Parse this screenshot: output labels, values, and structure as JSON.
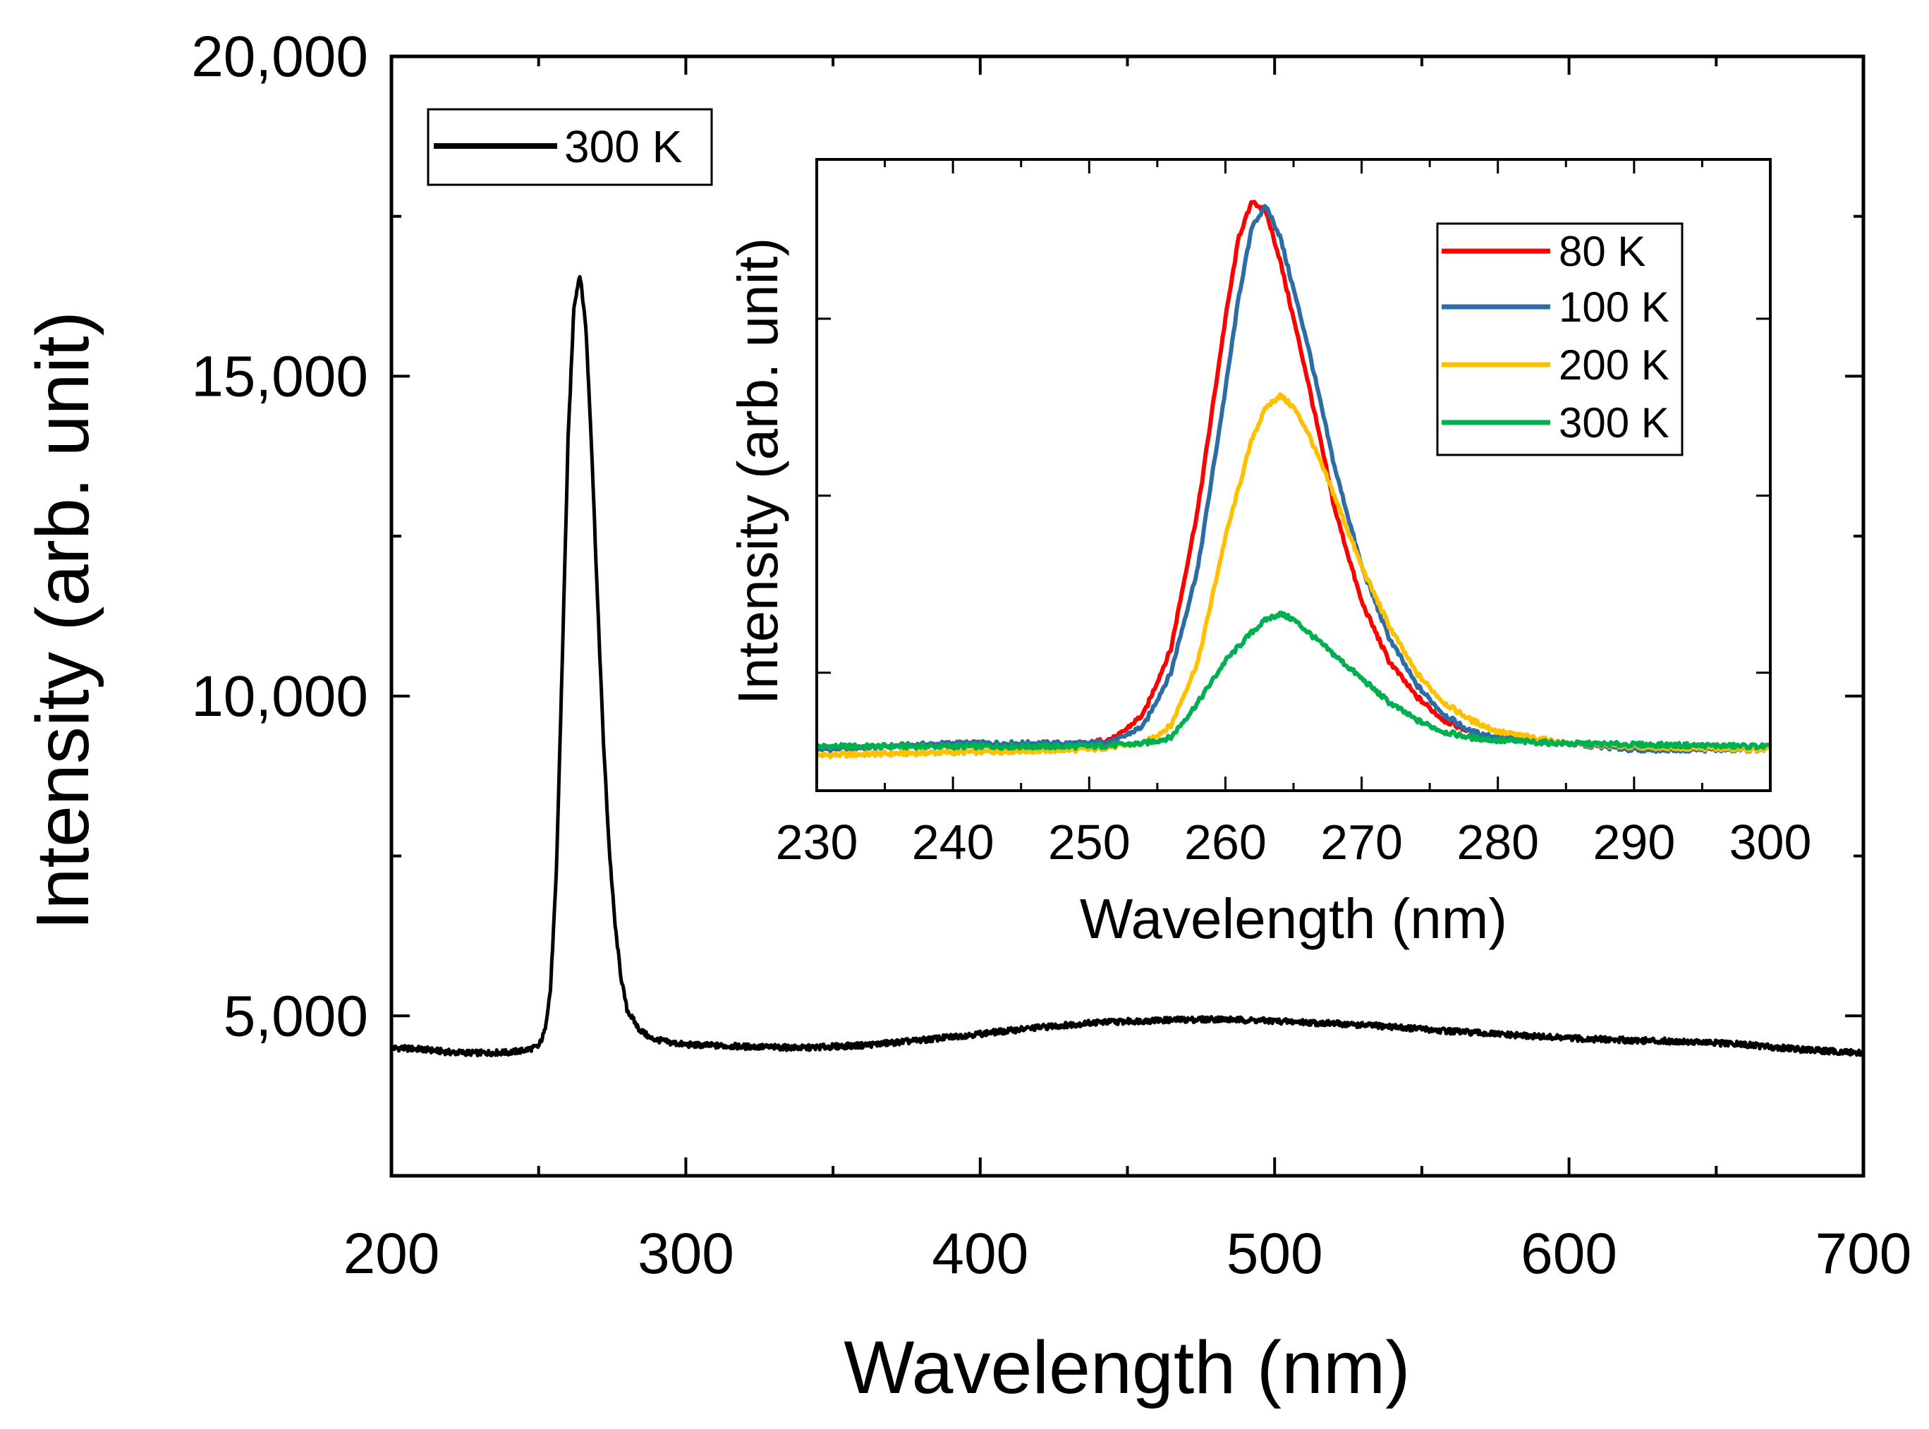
{
  "chart_data": [
    {
      "type": "line",
      "title": "",
      "xlabel": "Wavelength (nm)",
      "ylabel": "Intensity (arb. unit)",
      "xlim": [
        200,
        700
      ],
      "ylim": [
        2500,
        20000
      ],
      "xticks": [
        200,
        300,
        400,
        500,
        600,
        700
      ],
      "xtick_labels": [
        "200",
        "300",
        "400",
        "500",
        "600",
        "700"
      ],
      "yticks": [
        5000,
        10000,
        15000,
        20000
      ],
      "ytick_labels": [
        "5,000",
        "10,000",
        "15,000",
        "20,000"
      ],
      "grid": false,
      "legend_position": "top-left",
      "series": [
        {
          "name": "300 K",
          "color": "#000000",
          "x": [
            200,
            210,
            220,
            230,
            240,
            245,
            250,
            252,
            254,
            256,
            258,
            260,
            262,
            264,
            266,
            268,
            270,
            272,
            274,
            276,
            278,
            280,
            284,
            288,
            295,
            300,
            320,
            340,
            360,
            380,
            400,
            420,
            440,
            460,
            480,
            500,
            520,
            540,
            560,
            580,
            600,
            620,
            640,
            660,
            680,
            700
          ],
          "y": [
            4500,
            4480,
            4430,
            4420,
            4430,
            4460,
            4520,
            4750,
            5400,
            7200,
            10500,
            14000,
            16100,
            16600,
            15800,
            13900,
            11500,
            9300,
            7600,
            6400,
            5600,
            5100,
            4800,
            4650,
            4580,
            4550,
            4520,
            4500,
            4540,
            4620,
            4720,
            4820,
            4900,
            4930,
            4950,
            4920,
            4880,
            4830,
            4760,
            4700,
            4650,
            4620,
            4600,
            4550,
            4470,
            4420
          ]
        }
      ]
    },
    {
      "type": "line",
      "title": "",
      "xlabel": "Wavelength (nm)",
      "ylabel": "Intensity (arb. unit)",
      "xlim": [
        230,
        300
      ],
      "ylim": [
        0,
        1.07
      ],
      "xticks": [
        230,
        240,
        250,
        260,
        270,
        280,
        290,
        300
      ],
      "xtick_labels": [
        "230",
        "240",
        "250",
        "260",
        "270",
        "280",
        "290",
        "300"
      ],
      "grid": false,
      "legend_position": "top-right",
      "series": [
        {
          "name": "80 K",
          "color": "#ff0000",
          "x": [
            230,
            240,
            250,
            252,
            254,
            256,
            258,
            260,
            261,
            262,
            263,
            264,
            266,
            268,
            270,
            272,
            274,
            276,
            278,
            280,
            285,
            290,
            300
          ],
          "y": [
            0.07,
            0.08,
            0.08,
            0.09,
            0.13,
            0.24,
            0.48,
            0.8,
            0.94,
            1.0,
            0.98,
            0.9,
            0.7,
            0.48,
            0.32,
            0.22,
            0.16,
            0.12,
            0.1,
            0.09,
            0.08,
            0.07,
            0.07
          ]
        },
        {
          "name": "100 K",
          "color": "#2e6da4",
          "x": [
            230,
            240,
            250,
            252,
            254,
            256,
            258,
            260,
            261,
            262,
            263,
            264,
            266,
            268,
            270,
            272,
            274,
            276,
            278,
            280,
            285,
            290,
            300
          ],
          "y": [
            0.07,
            0.08,
            0.08,
            0.085,
            0.11,
            0.2,
            0.38,
            0.68,
            0.84,
            0.96,
            0.99,
            0.94,
            0.76,
            0.55,
            0.38,
            0.26,
            0.18,
            0.13,
            0.1,
            0.09,
            0.08,
            0.07,
            0.07
          ]
        },
        {
          "name": "200 K",
          "color": "#ffc000",
          "x": [
            230,
            240,
            250,
            254,
            256,
            258,
            260,
            262,
            263,
            264,
            265,
            266,
            268,
            270,
            272,
            274,
            276,
            278,
            280,
            285,
            290,
            300
          ],
          "y": [
            0.06,
            0.065,
            0.07,
            0.08,
            0.11,
            0.22,
            0.43,
            0.6,
            0.65,
            0.67,
            0.65,
            0.61,
            0.5,
            0.38,
            0.28,
            0.2,
            0.15,
            0.12,
            0.1,
            0.08,
            0.075,
            0.07
          ]
        },
        {
          "name": "300 K",
          "color": "#00b050",
          "x": [
            230,
            240,
            250,
            254,
            256,
            258,
            260,
            262,
            263,
            264,
            265,
            266,
            268,
            270,
            272,
            274,
            276,
            278,
            280,
            285,
            290,
            300
          ],
          "y": [
            0.075,
            0.075,
            0.075,
            0.08,
            0.09,
            0.15,
            0.22,
            0.27,
            0.29,
            0.3,
            0.29,
            0.27,
            0.23,
            0.19,
            0.15,
            0.12,
            0.1,
            0.09,
            0.085,
            0.08,
            0.078,
            0.075
          ]
        }
      ]
    }
  ]
}
